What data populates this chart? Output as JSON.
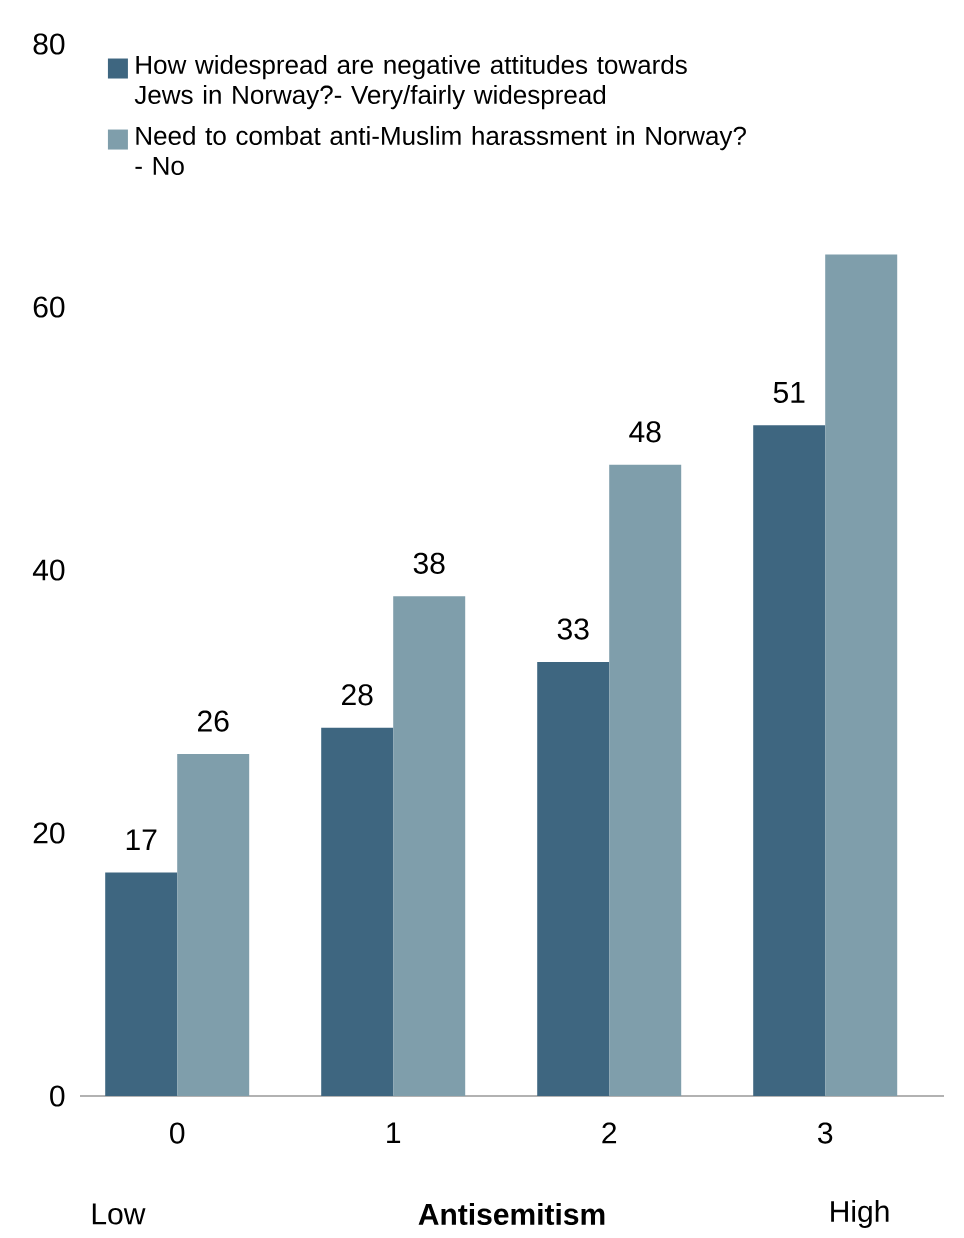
{
  "chart_data": {
    "type": "bar",
    "xlabel": "Antisemitism",
    "categories": [
      "0",
      "1",
      "2",
      "3"
    ],
    "series": [
      {
        "name": "How widespread are negative attitudes towards Jews in Norway?- Very/fairly widespread",
        "color": "#3e6680",
        "values": [
          17,
          28,
          33,
          51
        ],
        "value_labels": [
          "17",
          "28",
          "33",
          "51"
        ]
      },
      {
        "name": "Need to combat anti-Muslim harassment in Norway? - No",
        "color": "#7f9eab",
        "values": [
          26,
          38,
          48,
          64
        ],
        "value_labels": [
          "26",
          "38",
          "48",
          null
        ]
      }
    ],
    "ylim": [
      0,
      80
    ],
    "yticks": [
      0,
      20,
      40,
      60,
      80
    ],
    "grid": false,
    "legend": "top left",
    "annotations": [
      "Low",
      "High"
    ]
  }
}
